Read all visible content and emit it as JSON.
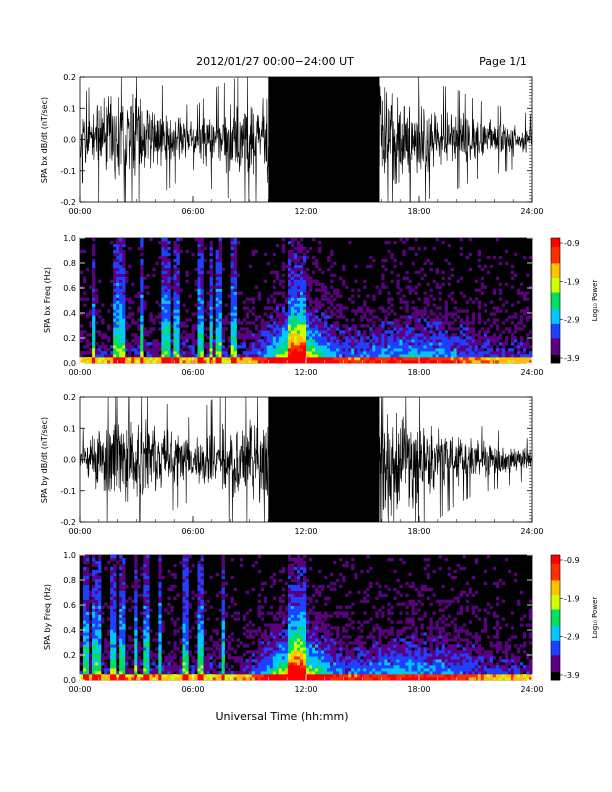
{
  "header": {
    "title": "2012/01/27  00:00−24:00 UT",
    "page": "Page 1/1"
  },
  "xaxis_label": "Universal Time (hh:mm)",
  "colorbar": {
    "label": "Log₁₀ Power",
    "ticks": [
      "-0.9",
      "-1.9",
      "-2.9",
      "-3.9"
    ],
    "range": [
      -3.9,
      -0.9
    ],
    "colors": [
      "#000000",
      "#5a0080",
      "#2040ff",
      "#00c8ff",
      "#00e060",
      "#d0ff00",
      "#ffc000",
      "#ff3000",
      "#ff0000"
    ]
  },
  "chart_data": [
    {
      "type": "line",
      "ylabel": "SPA bx dB/dt (nT/sec)",
      "ylim": [
        -0.2,
        0.2
      ],
      "yticks": [
        "0.2",
        "0.1",
        "0.0",
        "-0.1",
        "-0.2"
      ],
      "xlim": [
        0,
        24
      ],
      "xticks": [
        "00:00",
        "06:00",
        "12:00",
        "18:00",
        "24:00"
      ],
      "envelope": {
        "x": [
          0,
          1,
          2,
          3,
          4,
          5,
          6,
          7,
          8,
          9,
          9.9,
          10,
          12,
          15.9,
          16,
          17,
          18,
          19,
          20,
          21,
          22,
          23,
          24
        ],
        "amplitude": [
          0.08,
          0.13,
          0.16,
          0.15,
          0.12,
          0.09,
          0.06,
          0.1,
          0.12,
          0.13,
          0.15,
          0.25,
          0.25,
          0.25,
          0.2,
          0.15,
          0.13,
          0.11,
          0.1,
          0.08,
          0.07,
          0.06,
          0.05
        ]
      }
    },
    {
      "type": "heatmap",
      "ylabel": "SPA bx Freq (Hz)",
      "ylim": [
        0,
        1.0
      ],
      "yticks": [
        "1.0",
        "0.8",
        "0.6",
        "0.4",
        "0.2",
        "0.0"
      ],
      "xlim": [
        0,
        24
      ],
      "xticks": [
        "00:00",
        "06:00",
        "12:00",
        "18:00",
        "24:00"
      ],
      "log_power_range": [
        -3.9,
        -0.9
      ],
      "activity_peak_hour": 11.5
    },
    {
      "type": "line",
      "ylabel": "SPA by dB/dt (nT/sec)",
      "ylim": [
        -0.2,
        0.2
      ],
      "yticks": [
        "0.2",
        "0.1",
        "0.0",
        "-0.1",
        "-0.2"
      ],
      "xlim": [
        0,
        24
      ],
      "xticks": [
        "00:00",
        "06:00",
        "12:00",
        "18:00",
        "24:00"
      ],
      "envelope": {
        "x": [
          0,
          1,
          2,
          3,
          4,
          5,
          6,
          7,
          8,
          9,
          9.9,
          10,
          12,
          15.9,
          16,
          17,
          18,
          19,
          20,
          21,
          22,
          23,
          24
        ],
        "amplitude": [
          0.05,
          0.12,
          0.16,
          0.15,
          0.13,
          0.1,
          0.08,
          0.12,
          0.14,
          0.15,
          0.16,
          0.25,
          0.25,
          0.25,
          0.2,
          0.18,
          0.16,
          0.12,
          0.09,
          0.07,
          0.06,
          0.05,
          0.04
        ]
      }
    },
    {
      "type": "heatmap",
      "ylabel": "SPA by Freq (Hz)",
      "ylim": [
        0,
        1.0
      ],
      "yticks": [
        "1.0",
        "0.8",
        "0.6",
        "0.4",
        "0.2",
        "0.0"
      ],
      "xlim": [
        0,
        24
      ],
      "xticks": [
        "00:00",
        "06:00",
        "12:00",
        "18:00",
        "24:00"
      ],
      "log_power_range": [
        -3.9,
        -0.9
      ],
      "activity_peak_hour": 11.5
    }
  ]
}
